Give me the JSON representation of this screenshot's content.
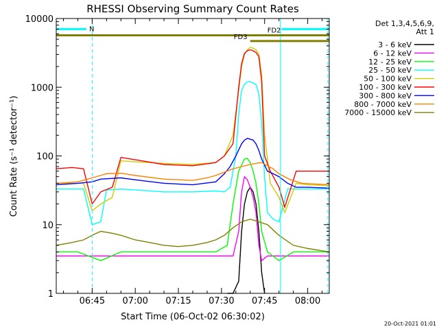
{
  "chart_data": {
    "type": "line",
    "title": "RHESSI Observing Summary Count Rates",
    "xlabel": "Start Time (06-Oct-02 06:30:02)",
    "ylabel": "Count Rate (s⁻¹ detector⁻¹)",
    "y_scale": "log",
    "ylim": [
      1,
      10000
    ],
    "xlim_minutes_after_0630": [
      2.5,
      97.5
    ],
    "x_ticks": [
      {
        "minute": 15,
        "label": "06:45"
      },
      {
        "minute": 30,
        "label": "07:00"
      },
      {
        "minute": 45,
        "label": "07:15"
      },
      {
        "minute": 60,
        "label": "07:30"
      },
      {
        "minute": 75,
        "label": "07:45"
      },
      {
        "minute": 90,
        "label": "08:00"
      }
    ],
    "y_ticks": [
      {
        "value": 1,
        "label": "1"
      },
      {
        "value": 10,
        "label": "10"
      },
      {
        "value": 100,
        "label": "100"
      },
      {
        "value": 1000,
        "label": "1000"
      },
      {
        "value": 10000,
        "label": "10000"
      }
    ],
    "legend_header": [
      "Det 1,3,4,5,6,9,",
      "Att 1"
    ],
    "legend_position": "right",
    "series": [
      {
        "name": "3 - 6 keV",
        "color": "#000000",
        "x": [
          62,
          64,
          66,
          67,
          68,
          69,
          70,
          71,
          72,
          73,
          74,
          75
        ],
        "y": [
          1,
          1,
          1.5,
          8,
          20,
          30,
          35,
          30,
          20,
          8,
          2,
          1
        ]
      },
      {
        "name": "6 - 12 keV",
        "color": "#ff00ff",
        "x": [
          2.5,
          20,
          40,
          58,
          60,
          62,
          64,
          66,
          67,
          68,
          69,
          70,
          71,
          72,
          73,
          74,
          76,
          97.5
        ],
        "y": [
          3.5,
          3.5,
          3.5,
          3.5,
          3.5,
          3.5,
          3.5,
          8,
          30,
          50,
          45,
          35,
          25,
          15,
          5,
          3,
          3.5,
          3.5
        ]
      },
      {
        "name": "12 - 25 keV",
        "color": "#00ff00",
        "x": [
          2.5,
          10,
          18,
          25,
          35,
          50,
          58,
          62,
          64,
          66,
          68,
          69,
          70,
          71,
          72,
          73,
          74,
          76,
          80,
          85,
          97.5
        ],
        "y": [
          4,
          4,
          3,
          4,
          4,
          4,
          4,
          5,
          20,
          60,
          90,
          92,
          80,
          60,
          40,
          20,
          8,
          4,
          3,
          4,
          4
        ]
      },
      {
        "name": "25 - 50 keV",
        "color": "#00ffff",
        "x": [
          2.5,
          8,
          12,
          15,
          18,
          20,
          25,
          30,
          40,
          50,
          58,
          61,
          63,
          65,
          66,
          67,
          68,
          69,
          70,
          71,
          72,
          73,
          74,
          75,
          76,
          78,
          80,
          83,
          86,
          90,
          97.5
        ],
        "y": [
          33,
          33,
          33,
          10,
          11,
          32,
          33,
          32,
          30,
          30,
          31,
          30,
          35,
          100,
          400,
          900,
          1100,
          1200,
          1200,
          1150,
          1100,
          800,
          300,
          50,
          15,
          12,
          11,
          33,
          33,
          33,
          33
        ]
      },
      {
        "name": "50 - 100 keV",
        "color": "#cccc00",
        "x": [
          2.5,
          8,
          12,
          15,
          18,
          22,
          25,
          30,
          40,
          50,
          58,
          61,
          64,
          66,
          67,
          68,
          69,
          70,
          71,
          72,
          73,
          74,
          75,
          77,
          80,
          82,
          86,
          90,
          97.5
        ],
        "y": [
          40,
          40,
          40,
          16,
          20,
          25,
          85,
          82,
          78,
          75,
          80,
          100,
          200,
          900,
          2000,
          3000,
          3500,
          3800,
          3700,
          3500,
          3000,
          1500,
          200,
          40,
          25,
          15,
          40,
          38,
          37
        ]
      },
      {
        "name": "100 - 300 keV",
        "color": "#ff0000",
        "x": [
          2.5,
          8,
          12,
          15,
          18,
          22,
          25,
          30,
          40,
          50,
          58,
          61,
          64,
          66,
          67,
          68,
          69,
          70,
          71,
          72,
          73,
          74,
          75,
          77,
          80,
          82,
          86,
          90,
          97.5
        ],
        "y": [
          65,
          68,
          65,
          20,
          30,
          35,
          95,
          88,
          75,
          72,
          80,
          100,
          150,
          1000,
          2200,
          3100,
          3400,
          3500,
          3400,
          3200,
          2800,
          1200,
          100,
          60,
          35,
          18,
          60,
          60,
          60
        ]
      },
      {
        "name": "300 - 800 keV",
        "color": "#0000ff",
        "x": [
          2.5,
          10,
          15,
          18,
          25,
          30,
          40,
          50,
          58,
          61,
          63,
          65,
          67,
          68,
          69,
          70,
          71,
          72,
          73,
          74,
          76,
          78,
          80,
          83,
          86,
          90,
          97.5
        ],
        "y": [
          38,
          40,
          42,
          46,
          48,
          45,
          40,
          38,
          42,
          55,
          70,
          100,
          150,
          170,
          180,
          175,
          170,
          150,
          120,
          90,
          60,
          55,
          50,
          40,
          35,
          35,
          34
        ]
      },
      {
        "name": "800 - 7000 keV",
        "color": "#ff7f00",
        "x": [
          2.5,
          10,
          15,
          20,
          25,
          30,
          40,
          50,
          55,
          58,
          61,
          64,
          67,
          70,
          72,
          74,
          76,
          78,
          80,
          84,
          88,
          97.5
        ],
        "y": [
          40,
          42,
          48,
          55,
          56,
          52,
          46,
          44,
          48,
          52,
          58,
          65,
          70,
          75,
          78,
          80,
          72,
          65,
          55,
          45,
          40,
          38
        ]
      },
      {
        "name": "7000 - 15000 keV",
        "color": "#808000",
        "x": [
          2.5,
          8,
          12,
          15,
          18,
          22,
          25,
          30,
          35,
          40,
          45,
          50,
          55,
          58,
          61,
          64,
          67,
          70,
          73,
          76,
          80,
          85,
          90,
          97.5
        ],
        "y": [
          5,
          5.5,
          6,
          7,
          8,
          7.5,
          7,
          6,
          5.5,
          5,
          4.8,
          5,
          5.5,
          6,
          7,
          9,
          11,
          12,
          11,
          10,
          7,
          5,
          4.5,
          4
        ]
      }
    ],
    "annotations": [
      {
        "label": "N",
        "x_start": 2.5,
        "x_end": 13,
        "level": 7000,
        "color": "#00ffff"
      },
      {
        "label": "",
        "x_start": 81,
        "x_end": 97.5,
        "level": 7000,
        "color": "#00ffff"
      },
      {
        "label": "FD2",
        "x_start": 2.5,
        "x_end": 97.5,
        "level": 5700,
        "color": "#808000"
      },
      {
        "label": "FD3",
        "x_start": 70,
        "x_end": 97.5,
        "level": 4700,
        "color": "#808000"
      }
    ],
    "vertical_markers": {
      "dashed": [
        15,
        97
      ],
      "solid": [
        80.5
      ]
    },
    "footer_timestamp": "20-Oct-2021 01:01"
  }
}
